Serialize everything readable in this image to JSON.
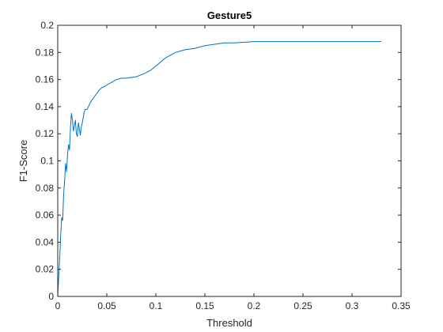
{
  "chart_data": {
    "type": "line",
    "title": "Gesture5",
    "xlabel": "Threshold",
    "ylabel": "F1-Score",
    "xlim": [
      0,
      0.35
    ],
    "ylim": [
      0,
      0.2
    ],
    "xticks": [
      "0",
      "0.05",
      "0.1",
      "0.15",
      "0.2",
      "0.25",
      "0.3",
      "0.35"
    ],
    "yticks": [
      "0",
      "0.02",
      "0.04",
      "0.06",
      "0.08",
      "0.1",
      "0.12",
      "0.14",
      "0.16",
      "0.18",
      "0.2"
    ],
    "grid": false,
    "line_color": "#0072BD",
    "series": [
      {
        "x": [
          0,
          0.001,
          0.002,
          0.003,
          0.004,
          0.005,
          0.006,
          0.007,
          0.008,
          0.009,
          0.01,
          0.011,
          0.012,
          0.013,
          0.014,
          0.015,
          0.016,
          0.017,
          0.018,
          0.019,
          0.02,
          0.021,
          0.022,
          0.023,
          0.024,
          0.025,
          0.026,
          0.027,
          0.028,
          0.03,
          0.032,
          0.034,
          0.036,
          0.038,
          0.04,
          0.042,
          0.045,
          0.048,
          0.05,
          0.055,
          0.06,
          0.065,
          0.07,
          0.08,
          0.09,
          0.095,
          0.1,
          0.105,
          0.11,
          0.115,
          0.12,
          0.125,
          0.13,
          0.14,
          0.15,
          0.16,
          0.17,
          0.18,
          0.2,
          0.22,
          0.25,
          0.3,
          0.33
        ],
        "y": [
          0,
          0.015,
          0.028,
          0.045,
          0.058,
          0.056,
          0.075,
          0.085,
          0.098,
          0.092,
          0.105,
          0.112,
          0.108,
          0.125,
          0.135,
          0.13,
          0.122,
          0.126,
          0.13,
          0.12,
          0.118,
          0.128,
          0.124,
          0.119,
          0.125,
          0.128,
          0.132,
          0.136,
          0.138,
          0.138,
          0.141,
          0.144,
          0.146,
          0.148,
          0.15,
          0.152,
          0.154,
          0.155,
          0.156,
          0.158,
          0.16,
          0.161,
          0.161,
          0.162,
          0.165,
          0.167,
          0.17,
          0.173,
          0.176,
          0.178,
          0.18,
          0.181,
          0.182,
          0.183,
          0.185,
          0.186,
          0.187,
          0.187,
          0.188,
          0.188,
          0.188,
          0.188,
          0.188
        ]
      }
    ]
  }
}
